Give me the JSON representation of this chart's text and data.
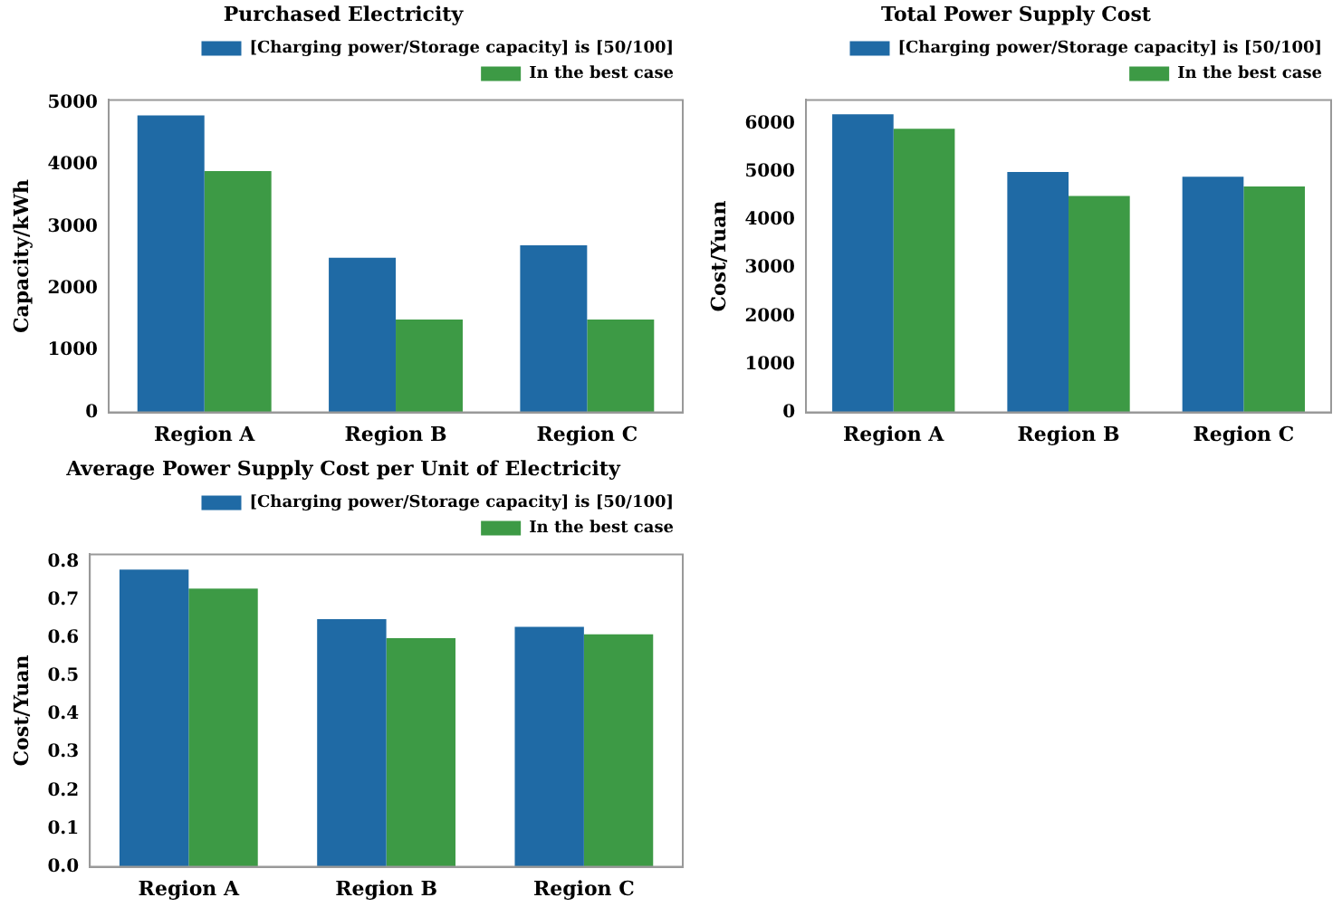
{
  "chart_data": [
    {
      "type": "bar",
      "title": "Purchased Electricity",
      "ylabel": "Capacity/kWh",
      "categories": [
        "Region A",
        "Region B",
        "Region C"
      ],
      "series": [
        {
          "name": "[Charging power/Storage capacity] is [50/100]",
          "color": "#1f6aa5",
          "values": [
            4800,
            2500,
            2700
          ]
        },
        {
          "name": "In the best case",
          "color": "#3d9a45",
          "values": [
            3900,
            1500,
            1500
          ]
        }
      ],
      "ylim": [
        0,
        5050
      ],
      "yticks": [
        0,
        1000,
        2000,
        3000,
        4000,
        5000
      ],
      "legend": "top right"
    },
    {
      "type": "bar",
      "title": "Total Power Supply Cost",
      "ylabel": "Cost/Yuan",
      "categories": [
        "Region A",
        "Region B",
        "Region C"
      ],
      "series": [
        {
          "name": "[Charging power/Storage capacity] is [50/100]",
          "color": "#1f6aa5",
          "values": [
            6200,
            5000,
            4900
          ]
        },
        {
          "name": "In the best case",
          "color": "#3d9a45",
          "values": [
            5900,
            4500,
            4700
          ]
        }
      ],
      "ylim": [
        0,
        6500
      ],
      "yticks": [
        0,
        1000,
        2000,
        3000,
        4000,
        5000,
        6000
      ],
      "legend": "top right"
    },
    {
      "type": "bar",
      "title": "Average Power Supply Cost per Unit of Electricity",
      "ylabel": "Cost/Yuan",
      "categories": [
        "Region A",
        "Region B",
        "Region C"
      ],
      "series": [
        {
          "name": "[Charging power/Storage capacity] is [50/100]",
          "color": "#1f6aa5",
          "values": [
            0.78,
            0.65,
            0.63
          ]
        },
        {
          "name": "In the best case",
          "color": "#3d9a45",
          "values": [
            0.73,
            0.6,
            0.61
          ]
        }
      ],
      "ylim": [
        0,
        0.82
      ],
      "yticks": [
        {
          "value": 0,
          "label": "0.0"
        },
        0.1,
        0.2,
        0.3,
        0.4,
        0.5,
        0.6,
        0.7,
        0.8
      ],
      "legend": "top right"
    }
  ]
}
